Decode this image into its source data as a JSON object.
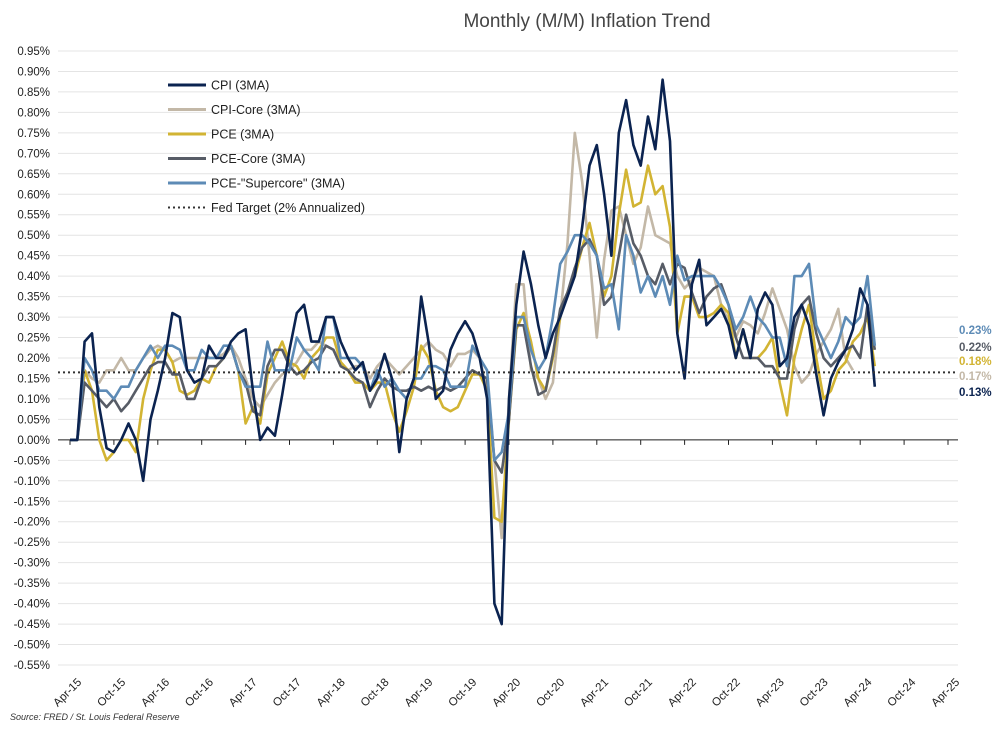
{
  "chart_data": {
    "type": "line",
    "title": "Monthly (M/M) Inflation Trend",
    "source": "Source: FRED / St. Louis Federal Reserve",
    "xlabel": "",
    "ylabel": "",
    "x_tick_labels": [
      "Apr-15",
      "Oct-15",
      "Apr-16",
      "Oct-16",
      "Apr-17",
      "Oct-17",
      "Apr-18",
      "Oct-18",
      "Apr-19",
      "Oct-19",
      "Apr-20",
      "Oct-20",
      "Apr-21",
      "Oct-21",
      "Apr-22",
      "Oct-22",
      "Apr-23",
      "Oct-23",
      "Apr-24",
      "Oct-24",
      "Apr-25"
    ],
    "x_tick_format": "month-year, every 6 months",
    "y_tick_labels": [
      "0.95%",
      "0.90%",
      "0.85%",
      "0.80%",
      "0.75%",
      "0.70%",
      "0.65%",
      "0.60%",
      "0.55%",
      "0.50%",
      "0.45%",
      "0.40%",
      "0.35%",
      "0.30%",
      "0.25%",
      "0.20%",
      "0.15%",
      "0.10%",
      "0.05%",
      "0.00%",
      "-0.05%",
      "-0.10%",
      "-0.15%",
      "-0.20%",
      "-0.25%",
      "-0.30%",
      "-0.35%",
      "-0.40%",
      "-0.45%",
      "-0.50%",
      "-0.55%"
    ],
    "ylim": [
      -0.55,
      0.95
    ],
    "y_unit": "%",
    "xlim": [
      "2015-04",
      "2025-04"
    ],
    "grid": "horizontal",
    "legend_position": "top-left",
    "series": [
      {
        "name": "CPI (3MA)",
        "color": "#0b2350",
        "end_label": "0.13%",
        "start": "2015-04",
        "values": [
          0.0,
          0.0,
          0.24,
          0.26,
          0.08,
          -0.02,
          -0.03,
          0.0,
          0.04,
          0.0,
          -0.1,
          0.05,
          0.12,
          0.2,
          0.31,
          0.3,
          0.17,
          0.14,
          0.15,
          0.23,
          0.2,
          0.2,
          0.24,
          0.26,
          0.27,
          0.12,
          0.0,
          0.03,
          0.01,
          0.11,
          0.22,
          0.31,
          0.33,
          0.24,
          0.24,
          0.3,
          0.3,
          0.24,
          0.2,
          0.17,
          0.19,
          0.12,
          0.15,
          0.21,
          0.15,
          -0.03,
          0.1,
          0.15,
          0.35,
          0.24,
          0.1,
          0.12,
          0.22,
          0.26,
          0.29,
          0.26,
          0.2,
          0.1,
          -0.4,
          -0.45,
          0.1,
          0.33,
          0.46,
          0.38,
          0.28,
          0.2,
          0.26,
          0.3,
          0.35,
          0.4,
          0.52,
          0.67,
          0.72,
          0.6,
          0.45,
          0.75,
          0.83,
          0.72,
          0.67,
          0.79,
          0.71,
          0.88,
          0.73,
          0.26,
          0.15,
          0.38,
          0.44,
          0.28,
          0.3,
          0.32,
          0.28,
          0.2,
          0.27,
          0.2,
          0.32,
          0.36,
          0.33,
          0.18,
          0.2,
          0.3,
          0.33,
          0.28,
          0.16,
          0.06,
          0.15,
          0.19,
          0.22,
          0.27,
          0.37,
          0.33,
          0.13
        ]
      },
      {
        "name": "CPI-Core (3MA)",
        "color": "#c3b8a7",
        "end_label": "0.17%",
        "start": "2015-04",
        "values": [
          0.0,
          0.0,
          0.17,
          0.15,
          0.14,
          0.17,
          0.17,
          0.2,
          0.17,
          0.17,
          0.2,
          0.22,
          0.23,
          0.22,
          0.19,
          0.2,
          0.2,
          0.2,
          0.2,
          0.2,
          0.2,
          0.21,
          0.23,
          0.2,
          0.15,
          0.1,
          0.08,
          0.11,
          0.14,
          0.16,
          0.17,
          0.19,
          0.22,
          0.22,
          0.24,
          0.23,
          0.22,
          0.19,
          0.17,
          0.18,
          0.18,
          0.15,
          0.18,
          0.2,
          0.18,
          0.16,
          0.18,
          0.2,
          0.22,
          0.24,
          0.22,
          0.21,
          0.18,
          0.21,
          0.21,
          0.22,
          0.2,
          0.12,
          -0.05,
          -0.24,
          0.1,
          0.38,
          0.38,
          0.17,
          0.15,
          0.1,
          0.14,
          0.3,
          0.48,
          0.75,
          0.63,
          0.45,
          0.25,
          0.44,
          0.56,
          0.57,
          0.5,
          0.43,
          0.47,
          0.57,
          0.5,
          0.49,
          0.48,
          0.4,
          0.37,
          0.39,
          0.42,
          0.41,
          0.4,
          0.33,
          0.29,
          0.25,
          0.29,
          0.28,
          0.26,
          0.31,
          0.37,
          0.32,
          0.27,
          0.18,
          0.14,
          0.16,
          0.21,
          0.24,
          0.27,
          0.32,
          0.2,
          0.17
        ]
      },
      {
        "name": "PCE (3MA)",
        "color": "#d2b433",
        "end_label": "0.18%",
        "start": "2015-04",
        "values": [
          0.0,
          0.0,
          0.17,
          0.12,
          0.0,
          -0.05,
          -0.03,
          0.0,
          0.0,
          -0.03,
          0.1,
          0.17,
          0.22,
          0.22,
          0.19,
          0.12,
          0.11,
          0.12,
          0.15,
          0.14,
          0.18,
          0.2,
          0.23,
          0.17,
          0.04,
          0.08,
          0.04,
          0.16,
          0.2,
          0.24,
          0.19,
          0.18,
          0.15,
          0.2,
          0.22,
          0.25,
          0.25,
          0.19,
          0.17,
          0.14,
          0.14,
          0.12,
          0.14,
          0.14,
          0.07,
          0.02,
          0.07,
          0.13,
          0.23,
          0.2,
          0.12,
          0.08,
          0.07,
          0.08,
          0.12,
          0.16,
          0.16,
          0.12,
          -0.19,
          -0.2,
          0.05,
          0.27,
          0.31,
          0.24,
          0.15,
          0.12,
          0.2,
          0.3,
          0.36,
          0.4,
          0.47,
          0.53,
          0.45,
          0.35,
          0.4,
          0.55,
          0.66,
          0.57,
          0.58,
          0.67,
          0.6,
          0.62,
          0.52,
          0.26,
          0.35,
          0.35,
          0.3,
          0.3,
          0.31,
          0.33,
          0.31,
          0.2,
          0.27,
          0.2,
          0.2,
          0.22,
          0.25,
          0.14,
          0.06,
          0.2,
          0.27,
          0.33,
          0.2,
          0.1,
          0.12,
          0.17,
          0.19,
          0.24,
          0.26,
          0.3,
          0.18
        ]
      },
      {
        "name": "PCE-Core (3MA)",
        "color": "#575c66",
        "end_label": "0.22%",
        "start": "2015-04",
        "values": [
          0.0,
          0.0,
          0.14,
          0.12,
          0.1,
          0.08,
          0.1,
          0.07,
          0.09,
          0.12,
          0.15,
          0.18,
          0.19,
          0.19,
          0.16,
          0.16,
          0.1,
          0.1,
          0.15,
          0.18,
          0.18,
          0.2,
          0.23,
          0.17,
          0.14,
          0.07,
          0.06,
          0.18,
          0.22,
          0.22,
          0.18,
          0.16,
          0.17,
          0.19,
          0.2,
          0.23,
          0.22,
          0.18,
          0.17,
          0.15,
          0.14,
          0.08,
          0.12,
          0.15,
          0.13,
          0.12,
          0.12,
          0.13,
          0.12,
          0.13,
          0.12,
          0.13,
          0.12,
          0.13,
          0.15,
          0.17,
          0.16,
          0.15,
          -0.05,
          -0.08,
          0.05,
          0.28,
          0.28,
          0.18,
          0.11,
          0.12,
          0.21,
          0.32,
          0.36,
          0.42,
          0.47,
          0.49,
          0.45,
          0.33,
          0.35,
          0.45,
          0.55,
          0.48,
          0.45,
          0.4,
          0.38,
          0.43,
          0.38,
          0.43,
          0.42,
          0.36,
          0.31,
          0.35,
          0.37,
          0.38,
          0.33,
          0.25,
          0.2,
          0.2,
          0.2,
          0.18,
          0.18,
          0.15,
          0.15,
          0.27,
          0.33,
          0.35,
          0.26,
          0.2,
          0.18,
          0.2,
          0.22,
          0.23,
          0.2,
          0.33,
          0.22
        ]
      },
      {
        "name": "PCE-\"Supercore\" (3MA)",
        "color": "#5d8bb6",
        "end_label": "0.23%",
        "start": "2015-04",
        "values": [
          0.0,
          0.0,
          0.2,
          0.17,
          0.12,
          0.12,
          0.1,
          0.13,
          0.13,
          0.17,
          0.2,
          0.23,
          0.2,
          0.23,
          0.23,
          0.22,
          0.17,
          0.17,
          0.22,
          0.2,
          0.2,
          0.23,
          0.23,
          0.17,
          0.13,
          0.13,
          0.13,
          0.24,
          0.17,
          0.17,
          0.17,
          0.25,
          0.22,
          0.2,
          0.17,
          0.3,
          0.3,
          0.2,
          0.2,
          0.2,
          0.18,
          0.12,
          0.17,
          0.13,
          0.15,
          0.12,
          0.1,
          0.15,
          0.15,
          0.18,
          0.18,
          0.17,
          0.13,
          0.13,
          0.13,
          0.23,
          0.2,
          0.17,
          -0.05,
          -0.03,
          0.07,
          0.3,
          0.3,
          0.22,
          0.17,
          0.2,
          0.3,
          0.43,
          0.46,
          0.5,
          0.5,
          0.48,
          0.45,
          0.37,
          0.38,
          0.27,
          0.5,
          0.45,
          0.36,
          0.4,
          0.35,
          0.4,
          0.33,
          0.45,
          0.39,
          0.4,
          0.4,
          0.4,
          0.4,
          0.37,
          0.33,
          0.27,
          0.3,
          0.35,
          0.3,
          0.28,
          0.25,
          0.25,
          0.18,
          0.4,
          0.4,
          0.43,
          0.28,
          0.24,
          0.2,
          0.24,
          0.3,
          0.28,
          0.3,
          0.4,
          0.23
        ]
      },
      {
        "name": "Fed Target (2% Annualized)",
        "color": "#333333",
        "style": "dotted",
        "constant": 0.165
      }
    ]
  }
}
